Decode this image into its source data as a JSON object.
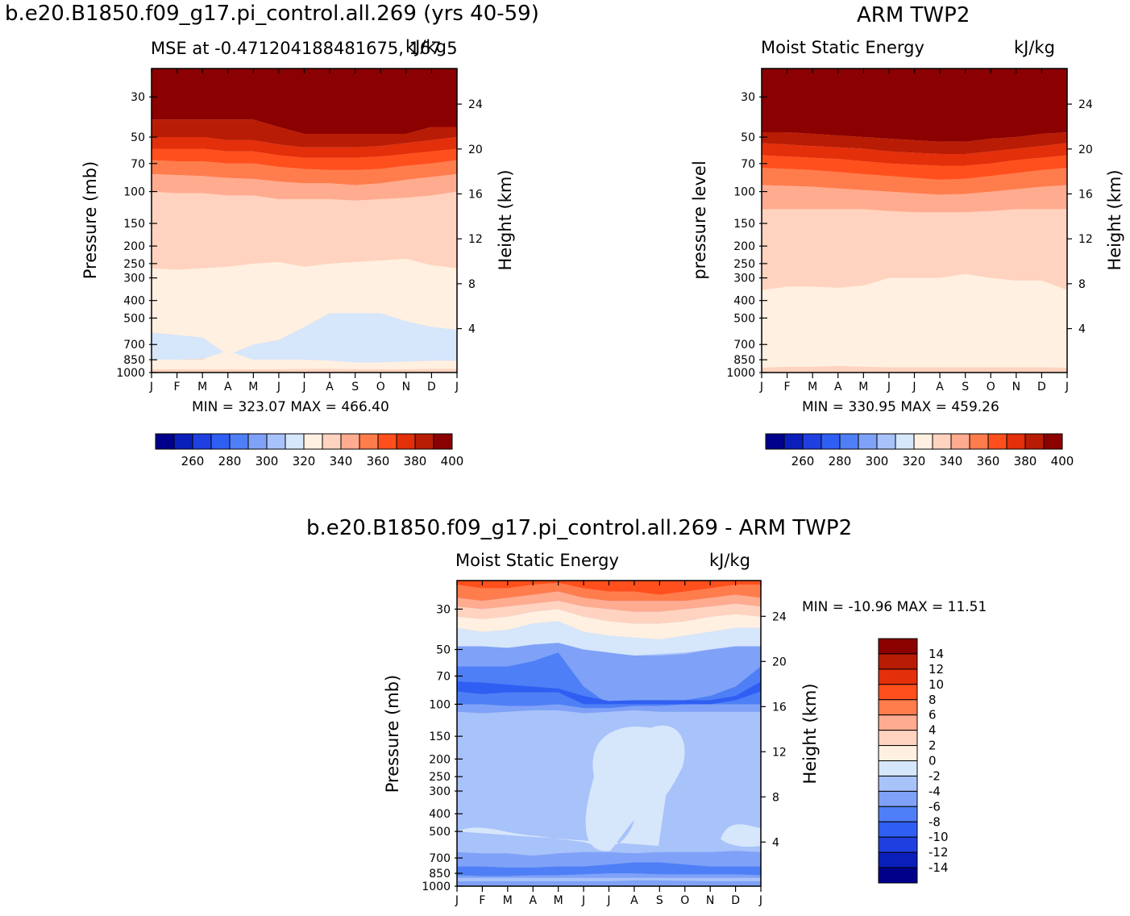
{
  "figure": {
    "left_title": "b.e20.B1850.f09_g17.pi_control.all.269 (yrs 40-59)",
    "right_title": "ARM TWP2",
    "bottom_title": "b.e20.B1850.f09_g17.pi_control.all.269 - ARM TWP2"
  },
  "colors": {
    "abs_scale": [
      "#00008b",
      "#0a1fba",
      "#1f3fe0",
      "#2f5ff2",
      "#4f7ff6",
      "#7fa1f7",
      "#a8c2fa",
      "#d6e6fb",
      "#fff0e1",
      "#ffd3bf",
      "#ffab8f",
      "#ff7c4d",
      "#ff4f1c",
      "#e32f0a",
      "#b91c05",
      "#8b0000"
    ],
    "diff_scale": [
      "#00008b",
      "#0a1fba",
      "#1f3fe0",
      "#2f5ff2",
      "#4f7ff6",
      "#7fa1f7",
      "#a8c2fa",
      "#d6e6fb",
      "#fff0e1",
      "#ffd3bf",
      "#ffab8f",
      "#ff7c4d",
      "#ff4f1c",
      "#e32f0a",
      "#b91c05",
      "#8b0000"
    ]
  },
  "chart_data": [
    {
      "type": "heatmap",
      "panel": "model",
      "title": "MSE at -0.471204188481675, 167.5",
      "title_overlap": "kJ/kg",
      "ylabel": "Pressure (mb)",
      "ylabel_right": "Height (km)",
      "x": [
        "J",
        "F",
        "M",
        "A",
        "M",
        "J",
        "J",
        "A",
        "S",
        "O",
        "N",
        "D",
        "J"
      ],
      "y_ticks": [
        "30",
        "50",
        "70",
        "100",
        "150",
        "200",
        "250",
        "300",
        "400",
        "500",
        "700",
        "850",
        "1000"
      ],
      "y_right_ticks": [
        "24",
        "20",
        "16",
        "12",
        "8",
        "4"
      ],
      "colorbar_ticks": [
        "260",
        "280",
        "300",
        "320",
        "340",
        "360",
        "380",
        "400"
      ],
      "minmax": "MIN = 323.07 MAX = 466.40",
      "min": 323.07,
      "max": 466.4,
      "contour_levels": [
        250,
        260,
        270,
        280,
        290,
        300,
        310,
        320,
        330,
        340,
        350,
        360,
        370,
        380,
        390,
        400,
        410
      ],
      "boundaries_mb": {
        "330": [
          650,
          850,
          850,
          720,
          850,
          850,
          850,
          850,
          870,
          870,
          870,
          860,
          860
        ],
        "410": [
          40,
          40,
          40,
          40,
          40,
          44,
          48,
          48,
          48,
          48,
          48,
          44,
          44
        ],
        "350": [
          265,
          270,
          265,
          260,
          250,
          245,
          260,
          250,
          245,
          240,
          235,
          255,
          265
        ],
        "360": [
          100,
          102,
          102,
          105,
          105,
          110,
          110,
          110,
          112,
          110,
          108,
          105,
          100
        ]
      }
    },
    {
      "type": "heatmap",
      "panel": "obs",
      "title": "Moist Static Energy",
      "units": "kJ/kg",
      "ylabel": "pressure level",
      "ylabel_right": "Height (km)",
      "x": [
        "J",
        "F",
        "M",
        "A",
        "M",
        "J",
        "J",
        "A",
        "S",
        "O",
        "N",
        "D",
        "J"
      ],
      "y_ticks": [
        "30",
        "50",
        "70",
        "100",
        "150",
        "200",
        "250",
        "300",
        "400",
        "500",
        "700",
        "850",
        "1000"
      ],
      "y_right_ticks": [
        "24",
        "20",
        "16",
        "12",
        "8",
        "4"
      ],
      "colorbar_ticks": [
        "260",
        "280",
        "300",
        "320",
        "340",
        "360",
        "380",
        "400"
      ],
      "minmax": "MIN = 330.95 MAX = 459.26",
      "min": 330.95,
      "max": 459.26
    },
    {
      "type": "heatmap",
      "panel": "difference",
      "title": "Moist Static Energy",
      "units": "kJ/kg",
      "ylabel": "Pressure (mb)",
      "ylabel_right": "Height (km)",
      "x": [
        "J",
        "F",
        "M",
        "A",
        "M",
        "J",
        "J",
        "A",
        "S",
        "O",
        "N",
        "D",
        "J"
      ],
      "y_ticks": [
        "30",
        "50",
        "70",
        "100",
        "150",
        "200",
        "250",
        "300",
        "400",
        "500",
        "700",
        "850",
        "1000"
      ],
      "y_right_ticks": [
        "24",
        "20",
        "16",
        "12",
        "8",
        "4"
      ],
      "colorbar_ticks": [
        "14",
        "12",
        "10",
        "8",
        "6",
        "4",
        "2",
        "0",
        "-2",
        "-4",
        "-6",
        "-8",
        "-10",
        "-12",
        "-14"
      ],
      "minmax": "MIN = -10.96 MAX =  11.51",
      "min": -10.96,
      "max": 11.51
    }
  ]
}
